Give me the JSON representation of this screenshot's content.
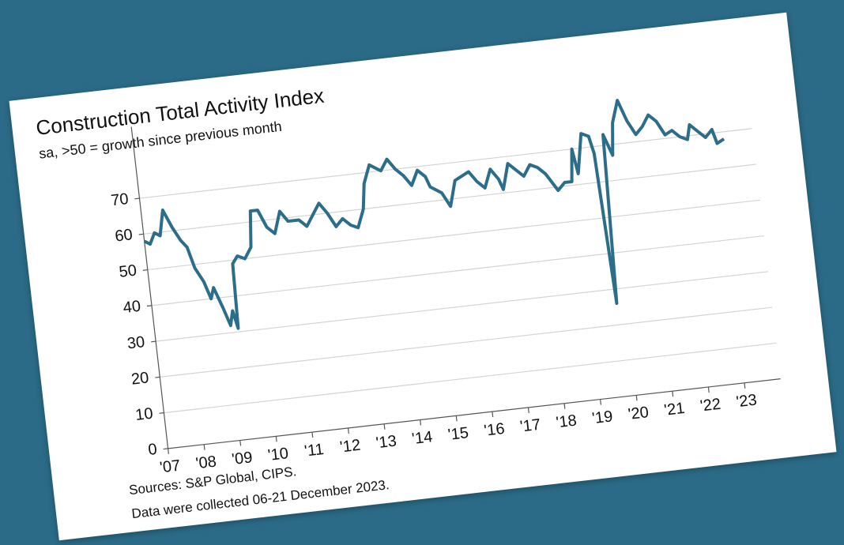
{
  "chart_data": {
    "type": "line",
    "title": "Construction Total Activity Index",
    "subtitle": "sa, >50 = growth since previous month",
    "sources": "Sources: S&P Global, CIPS.",
    "note": "Data were collected 06-21 December 2023.",
    "x": [
      2007.0,
      2007.15,
      2007.3,
      2007.45,
      2007.6,
      2007.8,
      2008.0,
      2008.15,
      2008.3,
      2008.5,
      2008.65,
      2008.75,
      2008.95,
      2009.1,
      2009.2,
      2009.3,
      2009.35,
      2009.5,
      2009.7,
      2009.9,
      2010.0,
      2010.2,
      2010.4,
      2010.6,
      2010.8,
      2011.0,
      2011.3,
      2011.5,
      2011.7,
      2011.9,
      2012.1,
      2012.3,
      2012.5,
      2012.7,
      2012.9,
      2013.1,
      2013.2,
      2013.4,
      2013.55,
      2013.7,
      2013.9,
      2014.1,
      2014.3,
      2014.5,
      2014.7,
      2014.9,
      2015.0,
      2015.3,
      2015.5,
      2015.7,
      2015.9,
      2016.1,
      2016.3,
      2016.5,
      2016.7,
      2016.9,
      2017.0,
      2017.2,
      2017.4,
      2017.6,
      2017.8,
      2018.0,
      2018.2,
      2018.5,
      2018.7,
      2018.9,
      2019.0,
      2019.1,
      2019.3,
      2019.5,
      2019.6,
      2019.75,
      2019.9,
      2020.1,
      2020.2,
      2020.4,
      2020.6,
      2020.8,
      2021.0,
      2021.2,
      2021.4,
      2021.6,
      2021.8,
      2022.0,
      2022.2,
      2022.3,
      2022.5,
      2022.7,
      2022.9,
      2023.0,
      2023.2
    ],
    "series": [
      {
        "name": "Construction Total Activity Index",
        "color": "#2c6e8a",
        "values": [
          58,
          57,
          60,
          59,
          66,
          61,
          57,
          55,
          49,
          45,
          40,
          43,
          37,
          32,
          36,
          31,
          49,
          51,
          50,
          53,
          63,
          63,
          58,
          56,
          62,
          59,
          59,
          57,
          60,
          63,
          60,
          56,
          58,
          56,
          55,
          60,
          67,
          72,
          71,
          70,
          73,
          70,
          68,
          65,
          69,
          67,
          64,
          62,
          58,
          65,
          66,
          67,
          64,
          62,
          67,
          64,
          61,
          68,
          66,
          64,
          67,
          66,
          64,
          59,
          61,
          61,
          70,
          63,
          74,
          73,
          68,
          26,
          73,
          67,
          76,
          82,
          76,
          72,
          74,
          77,
          75,
          71,
          72,
          70,
          69,
          73,
          71,
          69,
          71,
          67,
          68
        ]
      }
    ],
    "xlim": [
      2007,
      2024
    ],
    "xticks": [
      {
        "value": 2007,
        "label": "'07"
      },
      {
        "value": 2008,
        "label": "'08"
      },
      {
        "value": 2009,
        "label": "'09"
      },
      {
        "value": 2010,
        "label": "'10"
      },
      {
        "value": 2011,
        "label": "'11"
      },
      {
        "value": 2012,
        "label": "'12"
      },
      {
        "value": 2013,
        "label": "'13"
      },
      {
        "value": 2014,
        "label": "'14"
      },
      {
        "value": 2015,
        "label": "'15"
      },
      {
        "value": 2016,
        "label": "'16"
      },
      {
        "value": 2017,
        "label": "'17"
      },
      {
        "value": 2018,
        "label": "'18"
      },
      {
        "value": 2019,
        "label": "'19"
      },
      {
        "value": 2020,
        "label": "'20"
      },
      {
        "value": 2021,
        "label": "'21"
      },
      {
        "value": 2022,
        "label": "'22"
      },
      {
        "value": 2023,
        "label": "'23"
      }
    ],
    "ylim": [
      0,
      90
    ],
    "yticks": [
      0,
      10,
      20,
      30,
      40,
      50,
      60,
      70
    ],
    "grid": true
  }
}
